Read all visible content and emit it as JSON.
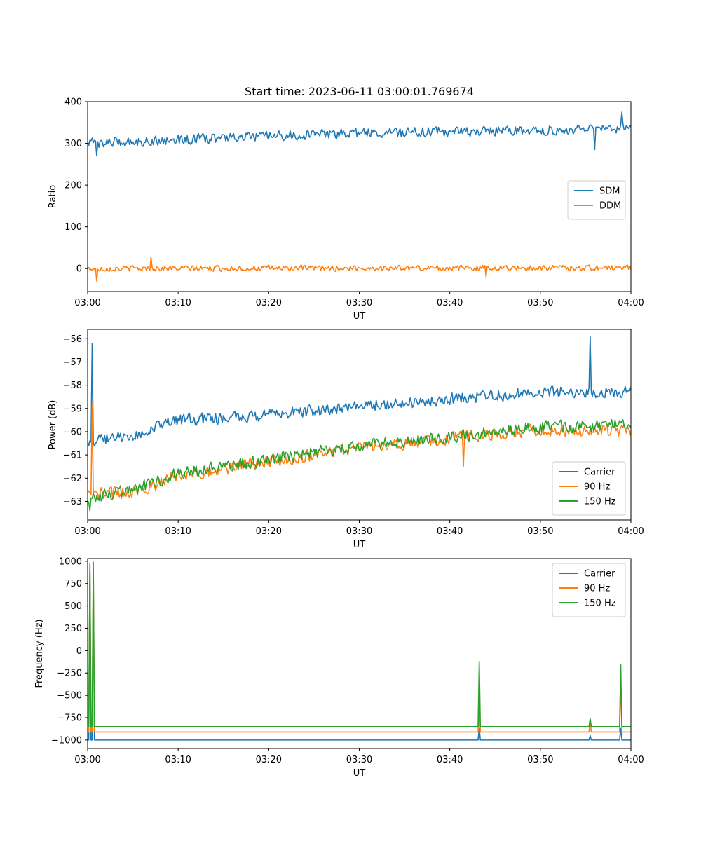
{
  "title": "Start time: 2023-06-11 03:00:01.769674",
  "colors": {
    "blue": "#1f77b4",
    "orange": "#ff7f0e",
    "green": "#2ca02c"
  },
  "chart_data": [
    {
      "type": "line",
      "xlabel": "UT",
      "ylabel": "Ratio",
      "xlim": [
        "03:00",
        "04:00"
      ],
      "ylim": [
        -55,
        400
      ],
      "x_ticks": [
        "03:00",
        "03:10",
        "03:20",
        "03:30",
        "03:40",
        "03:50",
        "04:00"
      ],
      "y_ticks": [
        0,
        100,
        200,
        300,
        400
      ],
      "legend_position": "center-right",
      "series": [
        {
          "name": "SDM",
          "color": "#1f77b4",
          "noise": 14,
          "seed": 3,
          "trend": [
            [
              "03:00",
              300
            ],
            [
              "03:30",
              325
            ],
            [
              "04:00",
              335
            ]
          ],
          "spikes": [
            [
              "03:00",
              305
            ],
            [
              "03:01",
              270
            ],
            [
              "03:56",
              285
            ],
            [
              "03:59",
              375
            ]
          ]
        },
        {
          "name": "DDM",
          "color": "#ff7f0e",
          "noise": 8,
          "seed": 11,
          "trend": [
            [
              "03:00",
              0
            ],
            [
              "04:00",
              2
            ]
          ],
          "spikes": [
            [
              "03:01",
              -30
            ],
            [
              "03:07",
              28
            ],
            [
              "03:44",
              -20
            ]
          ]
        }
      ]
    },
    {
      "type": "line",
      "xlabel": "UT",
      "ylabel": "Power (dB)",
      "xlim": [
        "03:00",
        "04:00"
      ],
      "ylim": [
        -63.8,
        -55.6
      ],
      "x_ticks": [
        "03:00",
        "03:10",
        "03:20",
        "03:30",
        "03:40",
        "03:50",
        "04:00"
      ],
      "y_ticks": [
        -63,
        -62,
        -61,
        -60,
        -59,
        -58,
        -57,
        -56
      ],
      "y_tick_labels": [
        "−63",
        "−62",
        "−61",
        "−60",
        "−59",
        "−58",
        "−57",
        "−56"
      ],
      "legend_position": "lower-right",
      "series": [
        {
          "name": "Carrier",
          "color": "#1f77b4",
          "noise": 0.3,
          "seed": 5,
          "trend": [
            [
              "03:00",
              -60.4
            ],
            [
              "03:05",
              -60.2
            ],
            [
              "03:10",
              -59.5
            ],
            [
              "03:20",
              -59.3
            ],
            [
              "03:30",
              -58.9
            ],
            [
              "03:40",
              -58.6
            ],
            [
              "03:50",
              -58.3
            ],
            [
              "04:00",
              -58.3
            ]
          ],
          "spikes": [
            [
              "03:00.5",
              -56.2
            ],
            [
              "03:55.5",
              -55.9
            ]
          ]
        },
        {
          "name": "90 Hz",
          "color": "#ff7f0e",
          "noise": 0.32,
          "seed": 17,
          "trend": [
            [
              "03:00",
              -62.7
            ],
            [
              "03:05",
              -62.6
            ],
            [
              "03:10",
              -61.9
            ],
            [
              "03:20",
              -61.3
            ],
            [
              "03:30",
              -60.7
            ],
            [
              "03:40",
              -60.3
            ],
            [
              "03:50",
              -59.9
            ],
            [
              "04:00",
              -60.0
            ]
          ],
          "spikes": [
            [
              "03:00.5",
              -58.8
            ],
            [
              "03:41.5",
              -61.5
            ]
          ]
        },
        {
          "name": "150 Hz",
          "color": "#2ca02c",
          "noise": 0.32,
          "seed": 29,
          "trend": [
            [
              "03:00",
              -62.9
            ],
            [
              "03:05",
              -62.5
            ],
            [
              "03:10",
              -61.8
            ],
            [
              "03:20",
              -61.2
            ],
            [
              "03:30",
              -60.6
            ],
            [
              "03:40",
              -60.2
            ],
            [
              "03:50",
              -59.8
            ],
            [
              "04:00",
              -59.7
            ]
          ],
          "spikes": [
            [
              "03:00.3",
              -63.4
            ]
          ]
        }
      ]
    },
    {
      "type": "line",
      "xlabel": "UT",
      "ylabel": "Frequency (Hz)",
      "xlim": [
        "03:00",
        "04:00"
      ],
      "ylim": [
        -1095,
        1030
      ],
      "x_ticks": [
        "03:00",
        "03:10",
        "03:20",
        "03:30",
        "03:40",
        "03:50",
        "04:00"
      ],
      "y_ticks": [
        -1000,
        -750,
        -500,
        -250,
        0,
        250,
        500,
        750,
        1000
      ],
      "y_tick_labels": [
        "−1000",
        "−750",
        "−500",
        "−250",
        "0",
        "250",
        "500",
        "750",
        "1000"
      ],
      "legend_position": "top-right",
      "series": [
        {
          "name": "Carrier",
          "color": "#1f77b4",
          "noise": 0,
          "seed": 1,
          "trend": [
            [
              "03:00",
              -1000
            ],
            [
              "04:00",
              -1000
            ]
          ],
          "spikes": [
            [
              "03:00.3",
              900
            ],
            [
              "03:00.6",
              800
            ],
            [
              "03:43.3",
              -870
            ],
            [
              "03:55.5",
              -950
            ],
            [
              "03:58.9",
              -870
            ]
          ]
        },
        {
          "name": "90 Hz",
          "color": "#ff7f0e",
          "noise": 0,
          "seed": 2,
          "trend": [
            [
              "03:00",
              -910
            ],
            [
              "04:00",
              -910
            ]
          ],
          "spikes": [
            [
              "03:00.3",
              950
            ],
            [
              "03:00.6",
              920
            ],
            [
              "03:43.3",
              -300
            ],
            [
              "03:55.5",
              -780
            ],
            [
              "03:58.9",
              -300
            ]
          ]
        },
        {
          "name": "150 Hz",
          "color": "#2ca02c",
          "noise": 0,
          "seed": 3,
          "trend": [
            [
              "03:00",
              -850
            ],
            [
              "04:00",
              -850
            ]
          ],
          "spikes": [
            [
              "03:00.3",
              980
            ],
            [
              "03:00.6",
              990
            ],
            [
              "03:43.3",
              -120
            ],
            [
              "03:55.5",
              -760
            ],
            [
              "03:58.9",
              -160
            ]
          ]
        }
      ]
    }
  ]
}
